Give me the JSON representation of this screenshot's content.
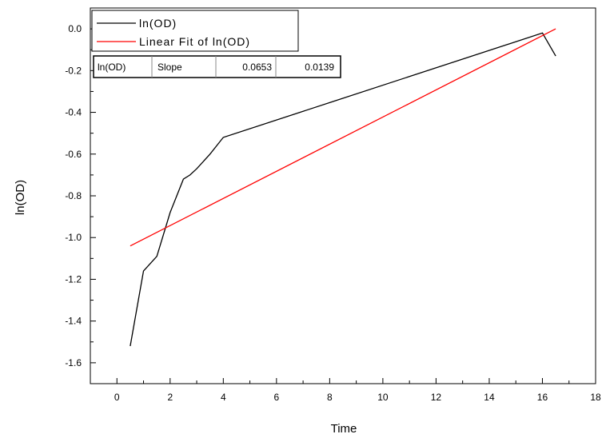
{
  "chart_data": {
    "type": "line",
    "xlabel": "Time",
    "ylabel": "ln(OD)",
    "xlim": [
      -1,
      18
    ],
    "ylim": [
      -1.7,
      0.1
    ],
    "x_ticks": [
      0,
      2,
      4,
      6,
      8,
      10,
      12,
      14,
      16,
      18
    ],
    "y_ticks": [
      0.0,
      -0.2,
      -0.4,
      -0.6,
      -0.8,
      -1.0,
      -1.2,
      -1.4,
      -1.6
    ],
    "x_tick_labels": [
      "0",
      "2",
      "4",
      "6",
      "8",
      "10",
      "12",
      "14",
      "16",
      "18"
    ],
    "y_tick_labels": [
      "0.0",
      "-0.2",
      "-0.4",
      "-0.6",
      "-0.8",
      "-1.0",
      "-1.2",
      "-1.4",
      "-1.6"
    ],
    "grid": false,
    "legend_position": "top-left",
    "series": [
      {
        "name": "ln(OD)",
        "color": "#000000",
        "x": [
          0.5,
          1.0,
          1.5,
          2.0,
          2.5,
          2.75,
          3.0,
          3.5,
          4.0,
          16.0,
          16.5
        ],
        "y": [
          -1.52,
          -1.16,
          -1.09,
          -0.88,
          -0.72,
          -0.7,
          -0.67,
          -0.6,
          -0.52,
          -0.02,
          -0.13
        ]
      },
      {
        "name": "Linear Fit of ln(OD)",
        "color": "#ff0000",
        "x": [
          0.5,
          16.5
        ],
        "y": [
          -1.04,
          0.0
        ]
      }
    ],
    "stats_table": {
      "cells": [
        "ln(OD)",
        "Slope",
        "0.0653",
        "0.0139"
      ]
    }
  }
}
